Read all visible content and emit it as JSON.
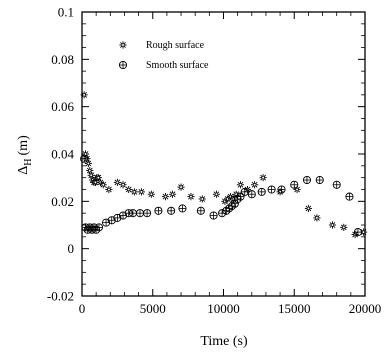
{
  "chart_data": {
    "type": "scatter",
    "xlabel": "Time (s)",
    "ylabel": "Δ",
    "ylabel_sub": "H",
    "ylabel_unit": "(m)",
    "xlim": [
      0,
      20000
    ],
    "ylim": [
      -0.02,
      0.1
    ],
    "xticks": [
      0,
      5000,
      10000,
      15000,
      20000
    ],
    "xtick_labels": [
      "0",
      "5000",
      "10000",
      "15000",
      "20000"
    ],
    "yticks": [
      -0.02,
      0,
      0.02,
      0.04,
      0.06,
      0.08,
      0.1
    ],
    "ytick_labels": [
      "-0.02",
      "0",
      "0.02",
      "0.04",
      "0.06",
      "0.08",
      "0.1"
    ],
    "grid": false,
    "legend_position": "top-left",
    "series": [
      {
        "name": "Rough surface",
        "marker": "star",
        "points": [
          [
            150,
            0.065
          ],
          [
            250,
            0.04
          ],
          [
            350,
            0.038
          ],
          [
            450,
            0.036
          ],
          [
            550,
            0.033
          ],
          [
            650,
            0.031
          ],
          [
            750,
            0.029
          ],
          [
            850,
            0.028
          ],
          [
            950,
            0.028
          ],
          [
            1050,
            0.03
          ],
          [
            1150,
            0.03
          ],
          [
            1300,
            0.028
          ],
          [
            1500,
            0.027
          ],
          [
            1900,
            0.025
          ],
          [
            2500,
            0.028
          ],
          [
            2900,
            0.027
          ],
          [
            3300,
            0.025
          ],
          [
            3700,
            0.024
          ],
          [
            4200,
            0.024
          ],
          [
            4900,
            0.023
          ],
          [
            5900,
            0.022
          ],
          [
            6400,
            0.023
          ],
          [
            7000,
            0.026
          ],
          [
            7700,
            0.022
          ],
          [
            8500,
            0.021
          ],
          [
            9500,
            0.023
          ],
          [
            10100,
            0.02
          ],
          [
            10300,
            0.021
          ],
          [
            10500,
            0.022
          ],
          [
            10700,
            0.021
          ],
          [
            10900,
            0.023
          ],
          [
            11200,
            0.027
          ],
          [
            11700,
            0.025
          ],
          [
            12200,
            0.027
          ],
          [
            12800,
            0.03
          ],
          [
            14000,
            0.024
          ],
          [
            15200,
            0.025
          ],
          [
            16000,
            0.017
          ],
          [
            16600,
            0.013
          ],
          [
            17700,
            0.01
          ],
          [
            18500,
            0.009
          ],
          [
            19300,
            0.006
          ],
          [
            19900,
            0.007
          ]
        ]
      },
      {
        "name": "Smooth surface",
        "marker": "circle-plus",
        "points": [
          [
            150,
            0.038
          ],
          [
            250,
            0.009
          ],
          [
            400,
            0.008
          ],
          [
            550,
            0.009
          ],
          [
            700,
            0.008
          ],
          [
            850,
            0.009
          ],
          [
            1000,
            0.008
          ],
          [
            1200,
            0.009
          ],
          [
            1700,
            0.011
          ],
          [
            2100,
            0.012
          ],
          [
            2500,
            0.013
          ],
          [
            2900,
            0.014
          ],
          [
            3300,
            0.015
          ],
          [
            3600,
            0.015
          ],
          [
            4100,
            0.015
          ],
          [
            4600,
            0.015
          ],
          [
            5400,
            0.016
          ],
          [
            6300,
            0.016
          ],
          [
            7100,
            0.017
          ],
          [
            8400,
            0.016
          ],
          [
            9300,
            0.014
          ],
          [
            9900,
            0.015
          ],
          [
            10200,
            0.016
          ],
          [
            10400,
            0.017
          ],
          [
            10600,
            0.018
          ],
          [
            10800,
            0.019
          ],
          [
            11000,
            0.021
          ],
          [
            11200,
            0.022
          ],
          [
            11500,
            0.024
          ],
          [
            12000,
            0.023
          ],
          [
            12700,
            0.024
          ],
          [
            13400,
            0.025
          ],
          [
            14100,
            0.025
          ],
          [
            15000,
            0.027
          ],
          [
            15900,
            0.029
          ],
          [
            16800,
            0.029
          ],
          [
            18000,
            0.027
          ],
          [
            18900,
            0.022
          ],
          [
            19500,
            0.007
          ]
        ]
      }
    ]
  }
}
